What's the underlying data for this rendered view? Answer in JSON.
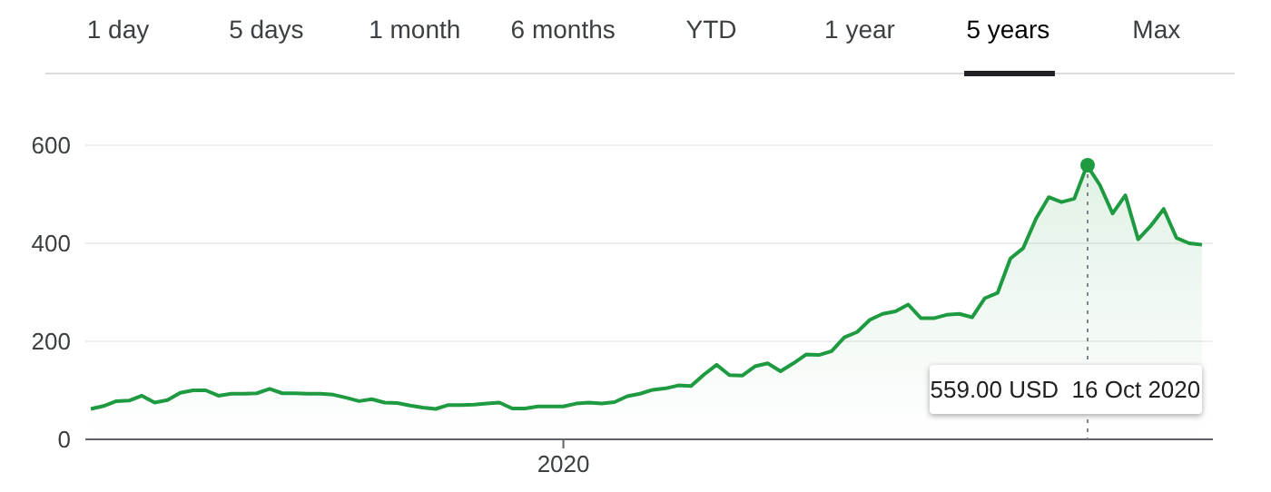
{
  "chart_data": {
    "type": "area",
    "categories": [
      null,
      null,
      null,
      null,
      null,
      null,
      null,
      null,
      null,
      null,
      null,
      null,
      null,
      null,
      null,
      null,
      null,
      null,
      null,
      null,
      null,
      null,
      null,
      null,
      null,
      null,
      null,
      null,
      null,
      null,
      null,
      null,
      null,
      null,
      null,
      null,
      null,
      "2020",
      null,
      null,
      null,
      null,
      null,
      null,
      null,
      null,
      null,
      null,
      null,
      null,
      null,
      null,
      null,
      null,
      null,
      null,
      null,
      null,
      null,
      null,
      null,
      null,
      null,
      null,
      null,
      null,
      null,
      null,
      null,
      null,
      null,
      null,
      null,
      null,
      null,
      null,
      null,
      null,
      null,
      null,
      null,
      null,
      null,
      null,
      null,
      null,
      null,
      null
    ],
    "series": [
      {
        "color": "#1e9a40",
        "values": [
          62,
          68,
          78,
          79,
          89,
          75,
          80,
          95,
          100,
          100,
          89,
          93,
          93,
          94,
          103,
          94,
          94,
          93,
          93,
          91,
          85,
          78,
          82,
          75,
          74,
          69,
          65,
          62,
          70,
          70,
          71,
          73,
          75,
          63,
          63,
          67,
          67,
          67,
          73,
          75,
          73,
          76,
          88,
          93,
          101,
          104,
          110,
          109,
          132,
          152,
          131,
          130,
          149,
          155,
          139,
          155,
          173,
          172,
          180,
          208,
          219,
          244,
          256,
          261,
          275,
          247,
          247,
          254,
          256,
          249,
          288,
          299,
          369,
          390,
          450,
          494,
          484,
          491,
          559,
          519,
          461,
          498,
          408,
          436,
          470,
          411,
          400,
          397
        ]
      }
    ],
    "ylim": [
      0,
      600
    ],
    "yticks": [
      0,
      200,
      400,
      600
    ],
    "grid": "y",
    "legend": false,
    "marker": "none",
    "annotations": [
      "1 day",
      "5 days",
      "1 month",
      "6 months",
      "YTD",
      "1 year",
      "5 years",
      "Max",
      "559.00 USD  16 Oct 2020"
    ]
  }
}
